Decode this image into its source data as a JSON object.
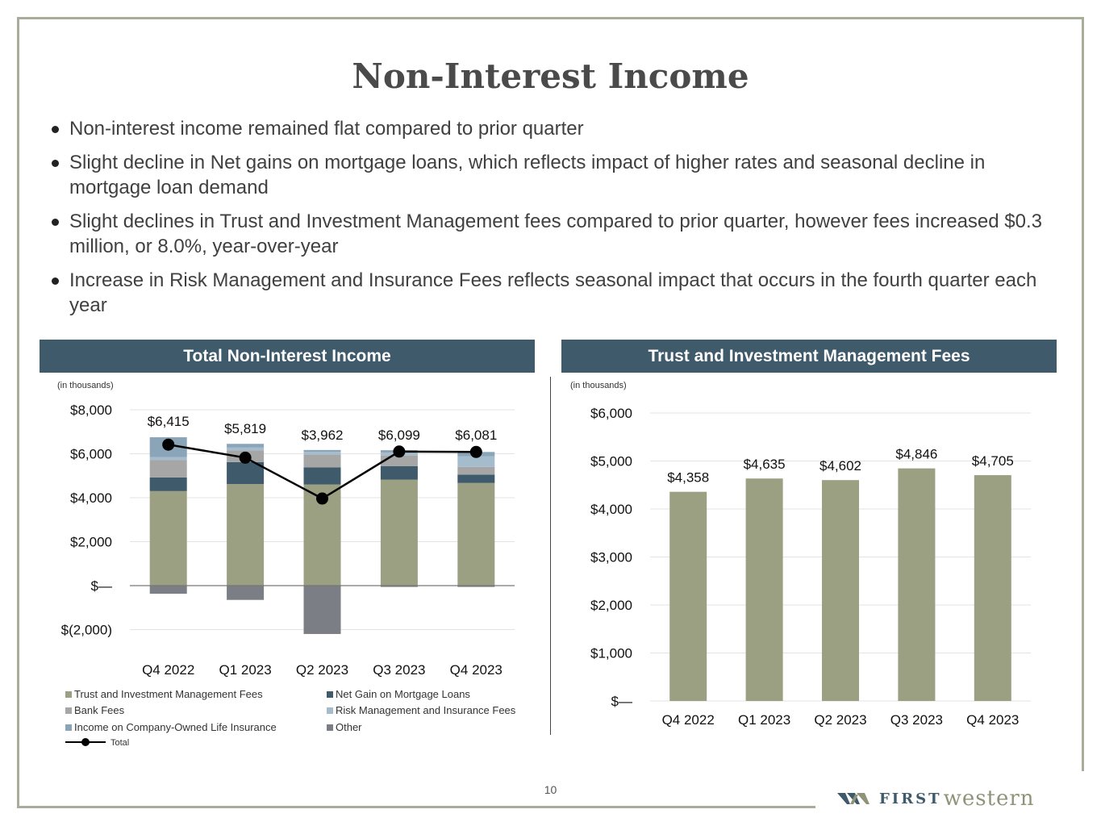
{
  "slide": {
    "title": "Non-Interest Income",
    "bullets": [
      "Non-interest income remained flat compared to  prior quarter",
      "Slight decline in Net gains on mortgage loans, which reflects impact of higher rates and seasonal decline in mortgage loan demand",
      "Slight declines in Trust and Investment Management fees compared to prior quarter, however fees increased $0.3 million, or 8.0%, year-over-year",
      "Increase in Risk Management and Insurance Fees reflects seasonal impact that occurs in the fourth quarter each year"
    ],
    "page_number": "10",
    "logo": {
      "first": "FIRST",
      "western": "western"
    }
  },
  "colors": {
    "trust": "#9ca082",
    "mortgage": "#3e5a6b",
    "bank": "#a6a6a6",
    "risk": "#a5bccc",
    "coli": "#8aa4b8",
    "other": "#7b7e85",
    "header": "#3e5a6b",
    "single_bar": "#9ca082"
  },
  "chart_data": [
    {
      "type": "bar",
      "stacked": true,
      "title": "Total Non-Interest Income",
      "unit_note": "(in thousands)",
      "categories": [
        "Q4 2022",
        "Q1 2023",
        "Q2 2023",
        "Q3 2023",
        "Q4 2023"
      ],
      "y_ticks": [
        -2000,
        0,
        2000,
        4000,
        6000,
        8000
      ],
      "y_tick_labels": [
        "$(2,000)",
        "$—",
        "$2,000",
        "$4,000",
        "$6,000",
        "$8,000"
      ],
      "ylim": [
        -2500,
        8500
      ],
      "series": [
        {
          "name": "Trust and Investment Management Fees",
          "color_key": "trust",
          "values": [
            4300,
            4620,
            4600,
            4820,
            4670
          ]
        },
        {
          "name": "Net Gain on Mortgage Loans",
          "color_key": "mortgage",
          "values": [
            620,
            1000,
            780,
            620,
            380
          ]
        },
        {
          "name": "Bank Fees",
          "color_key": "bank",
          "values": [
            800,
            530,
            580,
            480,
            350
          ]
        },
        {
          "name": "Risk Management and Insurance Fees",
          "color_key": "risk",
          "values": [
            130,
            130,
            130,
            130,
            480
          ]
        },
        {
          "name": "Income on Company-Owned Life Insurance",
          "color_key": "coli",
          "values": [
            900,
            170,
            80,
            110,
            200
          ]
        },
        {
          "name": "Other",
          "color_key": "other",
          "values": [
            -370,
            -650,
            -2200,
            -60,
            -60
          ]
        }
      ],
      "line": {
        "name": "Total",
        "values": [
          6415,
          5819,
          3962,
          6099,
          6081
        ],
        "labels": [
          "$6,415",
          "$5,819",
          "$3,962",
          "$6,099",
          "$6,081"
        ]
      },
      "legend_position": "bottom"
    },
    {
      "type": "bar",
      "title": "Trust and Investment Management Fees",
      "unit_note": "(in thousands)",
      "categories": [
        "Q4 2022",
        "Q1 2023",
        "Q2 2023",
        "Q3 2023",
        "Q4 2023"
      ],
      "values": [
        4358,
        4635,
        4602,
        4846,
        4705
      ],
      "labels": [
        "$4,358",
        "$4,635",
        "$4,602",
        "$4,846",
        "$4,705"
      ],
      "y_ticks": [
        0,
        1000,
        2000,
        3000,
        4000,
        5000,
        6000
      ],
      "y_tick_labels": [
        "$—",
        "$1,000",
        "$2,000",
        "$3,000",
        "$4,000",
        "$5,000",
        "$6,000"
      ],
      "ylim": [
        0,
        6000
      ],
      "grid": true
    }
  ]
}
